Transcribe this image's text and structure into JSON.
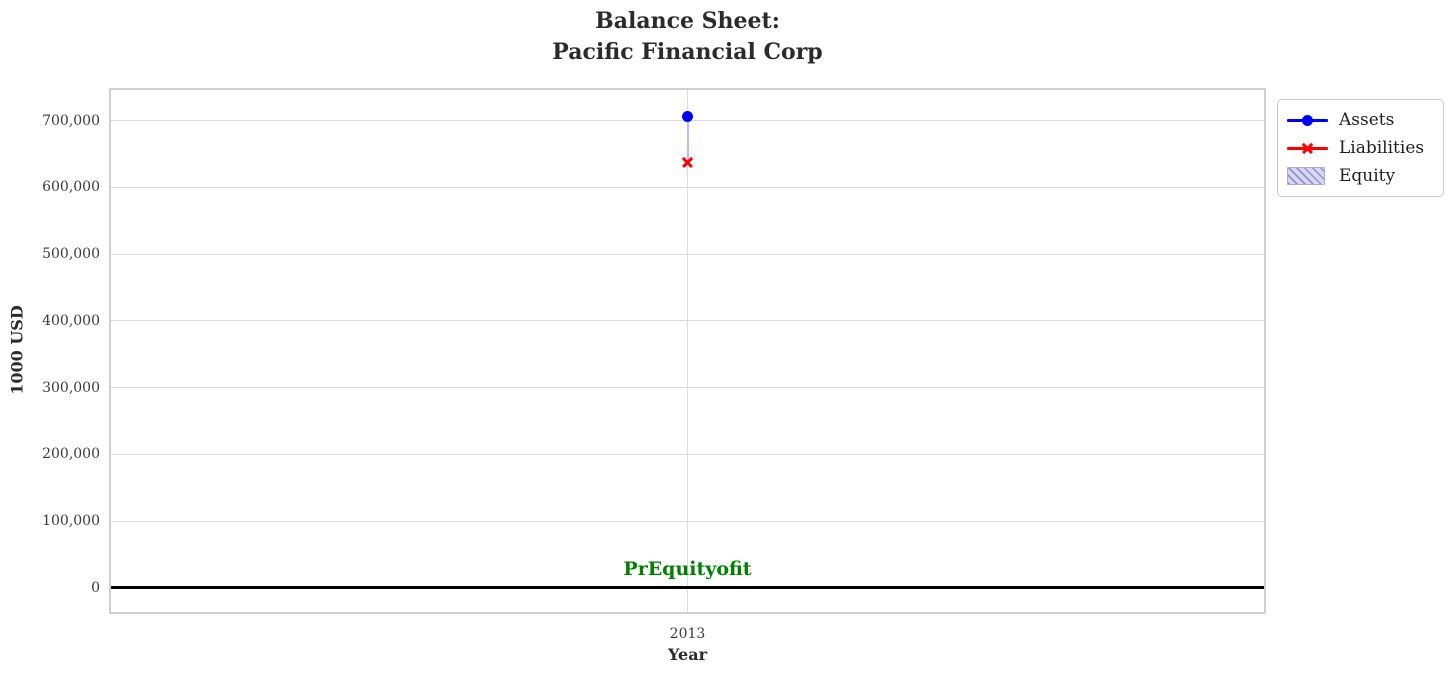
{
  "title": {
    "line1": "Balance Sheet:",
    "line2": "Pacific Financial Corp"
  },
  "axes": {
    "xlabel": "Year",
    "ylabel": "1000 USD",
    "xticks": [
      {
        "value": 2013,
        "label": "2013"
      }
    ]
  },
  "annotation": {
    "text": "PrEquityofit",
    "color": "#008000"
  },
  "legend": {
    "position": "outside-right-top",
    "entries": [
      {
        "label": "Assets",
        "marker": "line-circle",
        "color": "#0000ff"
      },
      {
        "label": "Liabilities",
        "marker": "line-x",
        "color": "#ff0000"
      },
      {
        "label": "Equity",
        "marker": "hatched-patch",
        "fill": "#d9d9f7",
        "hatch_color": "#8f8fd9"
      }
    ]
  },
  "chart_data": {
    "type": "line",
    "title": "Balance Sheet:\nPacific Financial Corp",
    "xlabel": "Year",
    "ylabel": "1000 USD",
    "x": [
      2013
    ],
    "series": [
      {
        "name": "Assets",
        "values": [
          706000
        ],
        "color": "#0000ff",
        "marker": "circle"
      },
      {
        "name": "Liabilities",
        "values": [
          638000
        ],
        "color": "#ff0000",
        "marker": "x"
      },
      {
        "name": "Equity",
        "style": "fill_between",
        "between": [
          "Liabilities",
          "Assets"
        ],
        "fill": "#d9d9f7",
        "hatch": "//"
      }
    ],
    "ylim": [
      -36000,
      746000
    ],
    "yticks": [
      {
        "value": 0,
        "label": "0"
      },
      {
        "value": 100000,
        "label": "100,000"
      },
      {
        "value": 200000,
        "label": "200,000"
      },
      {
        "value": 300000,
        "label": "300,000"
      },
      {
        "value": 400000,
        "label": "400,000"
      },
      {
        "value": 500000,
        "label": "500,000"
      },
      {
        "value": 600000,
        "label": "600,000"
      },
      {
        "value": 700000,
        "label": "700,000"
      }
    ],
    "grid": true,
    "zero_line": true,
    "colors": {
      "grid": "#dcdcdc",
      "spine": "#d0d0d0",
      "zero_line": "#000000",
      "equity_band": "#bcbcec",
      "title_text": "#2b2b2b",
      "annotation_text": "#008000"
    },
    "legend_position": "outside-right-top"
  }
}
